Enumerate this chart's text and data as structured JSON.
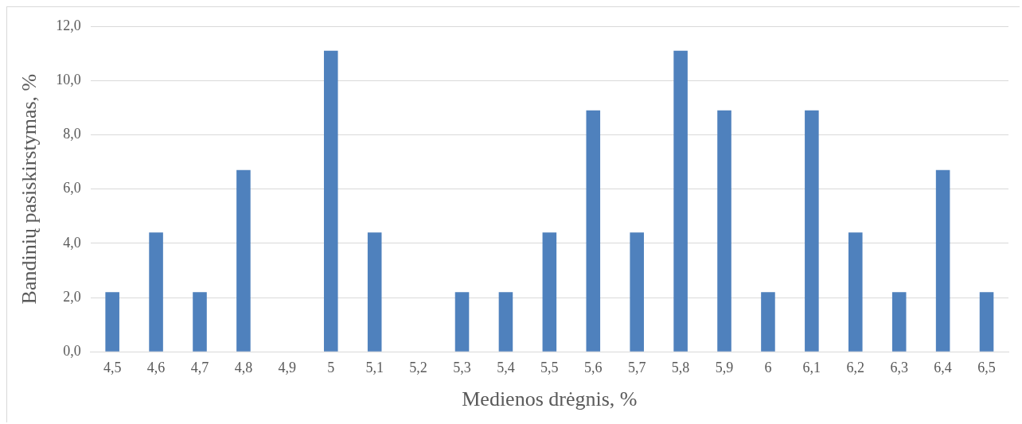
{
  "chart_data": {
    "type": "bar",
    "xlabel": "Medienos drėgnis, %",
    "ylabel": "Bandinių pasiskirstymas, %",
    "categories": [
      "4,5",
      "4,6",
      "4,7",
      "4,8",
      "4,9",
      "5",
      "5,1",
      "5,2",
      "5,3",
      "5,4",
      "5,5",
      "5,6",
      "5,7",
      "5,8",
      "5,9",
      "6",
      "6,1",
      "6,2",
      "6,3",
      "6,4",
      "6,5"
    ],
    "values": [
      2.2,
      4.4,
      2.2,
      6.7,
      0,
      11.1,
      4.4,
      0,
      2.2,
      2.2,
      4.4,
      8.9,
      4.4,
      11.1,
      8.9,
      2.2,
      8.9,
      4.4,
      2.2,
      6.7,
      2.2
    ],
    "color": "#4f81bd",
    "ylim": [
      0,
      12
    ],
    "yticks": [
      {
        "value": 0,
        "label": "0,0"
      },
      {
        "value": 2,
        "label": "2,0"
      },
      {
        "value": 4,
        "label": "4,0"
      },
      {
        "value": 6,
        "label": "6,0"
      },
      {
        "value": 8,
        "label": "8,0"
      },
      {
        "value": 10,
        "label": "10,0"
      },
      {
        "value": 12,
        "label": "12,0"
      }
    ],
    "grid": "y",
    "legend": false
  }
}
